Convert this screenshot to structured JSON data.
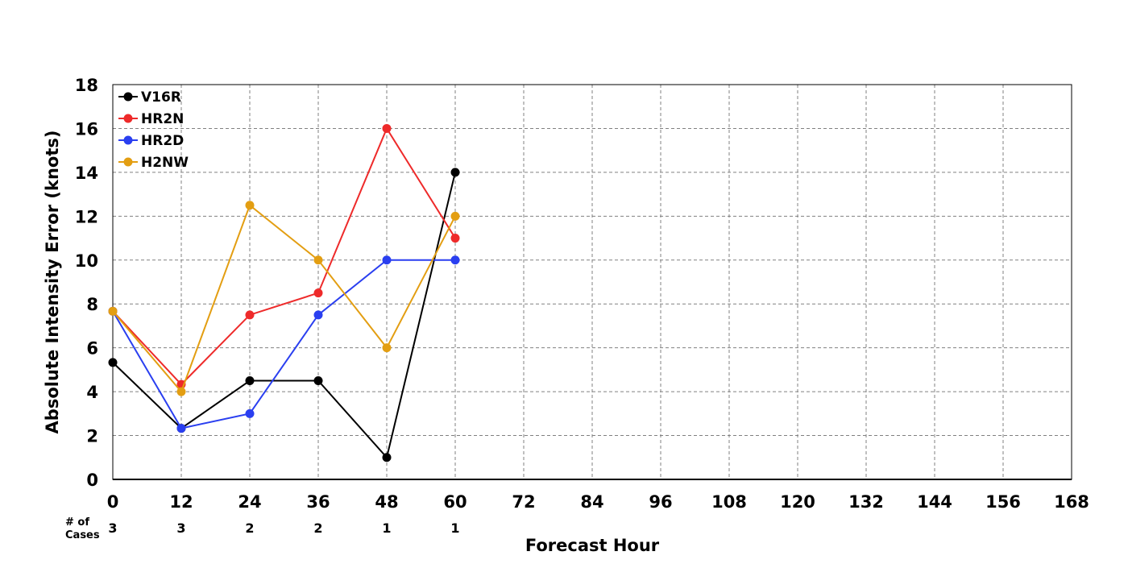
{
  "chart_data": {
    "type": "line",
    "xlabel": "Forecast Hour",
    "ylabel": "Absolute Intensity Error (knots)",
    "xlim": [
      0,
      168
    ],
    "ylim": [
      0,
      18
    ],
    "x_ticks": [
      0,
      12,
      24,
      36,
      48,
      60,
      72,
      84,
      96,
      108,
      120,
      132,
      144,
      156,
      168
    ],
    "y_ticks": [
      0,
      2,
      4,
      6,
      8,
      10,
      12,
      14,
      16,
      18
    ],
    "grid": true,
    "legend_position": "top-left",
    "series": [
      {
        "name": "V16R",
        "color": "#000000",
        "x": [
          0,
          12,
          24,
          36,
          48,
          60
        ],
        "values": [
          5.33,
          2.33,
          4.5,
          4.5,
          1,
          14
        ]
      },
      {
        "name": "HR2N",
        "color": "#ee2a2a",
        "x": [
          0,
          12,
          24,
          36,
          48,
          60
        ],
        "values": [
          7.67,
          4.33,
          7.5,
          8.5,
          16,
          11
        ]
      },
      {
        "name": "HR2D",
        "color": "#2a3ff0",
        "x": [
          0,
          12,
          24,
          36,
          48,
          60
        ],
        "values": [
          7.67,
          2.33,
          3,
          7.5,
          10,
          10
        ]
      },
      {
        "name": "H2NW",
        "color": "#e39e12",
        "x": [
          0,
          12,
          24,
          36,
          48,
          60
        ],
        "values": [
          7.67,
          4,
          12.5,
          10,
          6,
          12
        ]
      }
    ],
    "cases": {
      "label_line1": "# of",
      "label_line2": "Cases",
      "x": [
        0,
        12,
        24,
        36,
        48,
        60
      ],
      "counts": [
        "3",
        "3",
        "2",
        "2",
        "1",
        "1"
      ]
    }
  }
}
